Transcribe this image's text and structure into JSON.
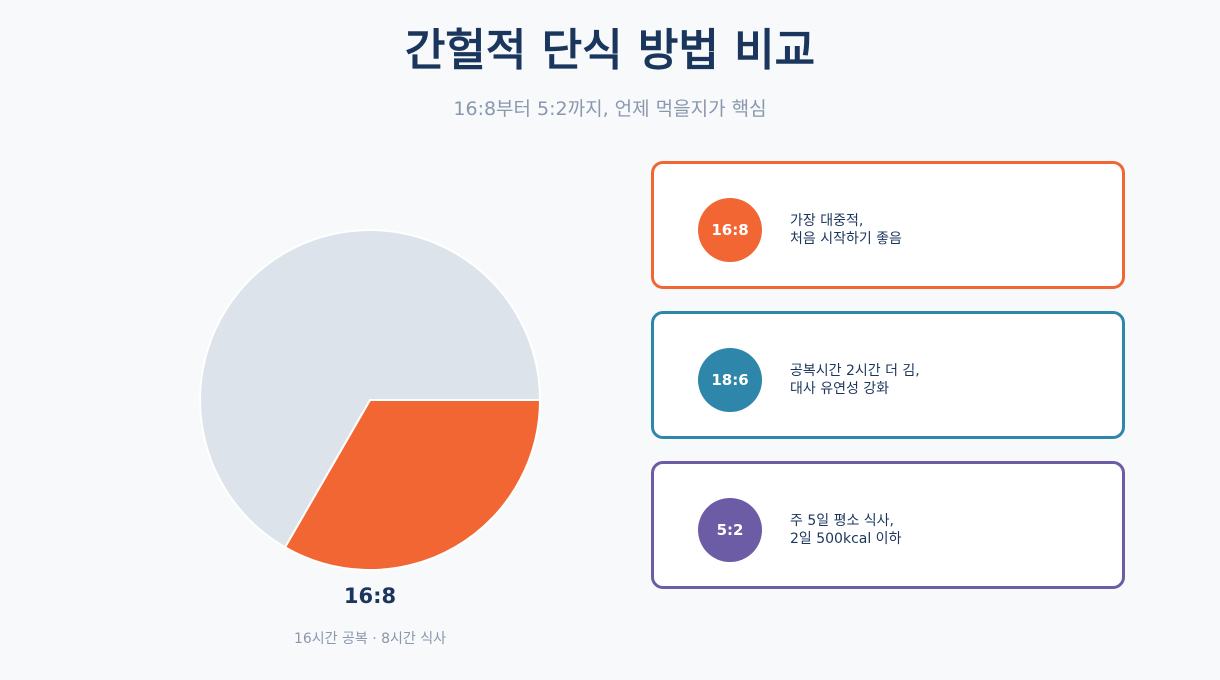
{
  "header": {
    "title": "간헐적 단식 방법 비교",
    "subtitle": "16:8부터 5:2까지, 언제 먹을지가 핵심"
  },
  "chart_data": {
    "type": "pie",
    "title": "16:8",
    "caption": "16시간 공복 · 8시간 식사",
    "values": [
      16,
      8
    ],
    "colors": [
      "#dde3ea",
      "#f26633"
    ]
  },
  "cards": [
    {
      "badge": "16:8",
      "color": "#f26633",
      "lines": [
        "가장 대중적,",
        "처음 시작하기 좋음"
      ]
    },
    {
      "badge": "18:6",
      "color": "#2e86ab",
      "lines": [
        "공복시간 2시간 더 김,",
        "대사 유연성 강화"
      ]
    },
    {
      "badge": "5:2",
      "color": "#6b5ca5",
      "lines": [
        "주 5일 평소 식사,",
        "2일 500kcal 이하"
      ]
    }
  ]
}
